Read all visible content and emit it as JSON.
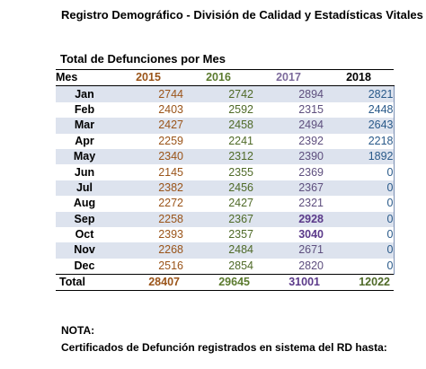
{
  "header": {
    "title": "Registro Demográfico - División de Calidad y Estadísticas Vitales"
  },
  "table": {
    "title": "Total de Defunciones por Mes",
    "month_header": "Mes",
    "year_headers": [
      "2015",
      "2016",
      "2017",
      "2018"
    ],
    "rows": [
      {
        "month": "Jan",
        "v2015": "2744",
        "v2016": "2742",
        "v2017": "2894",
        "v2018": "2821"
      },
      {
        "month": "Feb",
        "v2015": "2403",
        "v2016": "2592",
        "v2017": "2315",
        "v2018": "2448"
      },
      {
        "month": "Mar",
        "v2015": "2427",
        "v2016": "2458",
        "v2017": "2494",
        "v2018": "2643"
      },
      {
        "month": "Apr",
        "v2015": "2259",
        "v2016": "2241",
        "v2017": "2392",
        "v2018": "2218"
      },
      {
        "month": "May",
        "v2015": "2340",
        "v2016": "2312",
        "v2017": "2390",
        "v2018": "1892"
      },
      {
        "month": "Jun",
        "v2015": "2145",
        "v2016": "2355",
        "v2017": "2369",
        "v2018": "0"
      },
      {
        "month": "Jul",
        "v2015": "2382",
        "v2016": "2456",
        "v2017": "2367",
        "v2018": "0"
      },
      {
        "month": "Aug",
        "v2015": "2272",
        "v2016": "2427",
        "v2017": "2321",
        "v2018": "0"
      },
      {
        "month": "Sep",
        "v2015": "2258",
        "v2016": "2367",
        "v2017": "2928",
        "v2018": "0"
      },
      {
        "month": "Oct",
        "v2015": "2393",
        "v2016": "2357",
        "v2017": "3040",
        "v2018": "0"
      },
      {
        "month": "Nov",
        "v2015": "2268",
        "v2016": "2484",
        "v2017": "2671",
        "v2018": "0"
      },
      {
        "month": "Dec",
        "v2015": "2516",
        "v2016": "2854",
        "v2017": "2820",
        "v2018": "0"
      }
    ],
    "total": {
      "label": "Total",
      "v2015": "28407",
      "v2016": "29645",
      "v2017": "31001",
      "v2018": "12022"
    }
  },
  "note": {
    "label": "NOTA:",
    "text": "Certificados de Defunción registrados en sistema del RD hasta:"
  },
  "colors": {
    "y2015": "#9a5419",
    "y2016": "#5b7a2e",
    "y2017": "#7d6b9c",
    "y2018": "#2a5a8a",
    "row_shade": "#dde3ee"
  }
}
